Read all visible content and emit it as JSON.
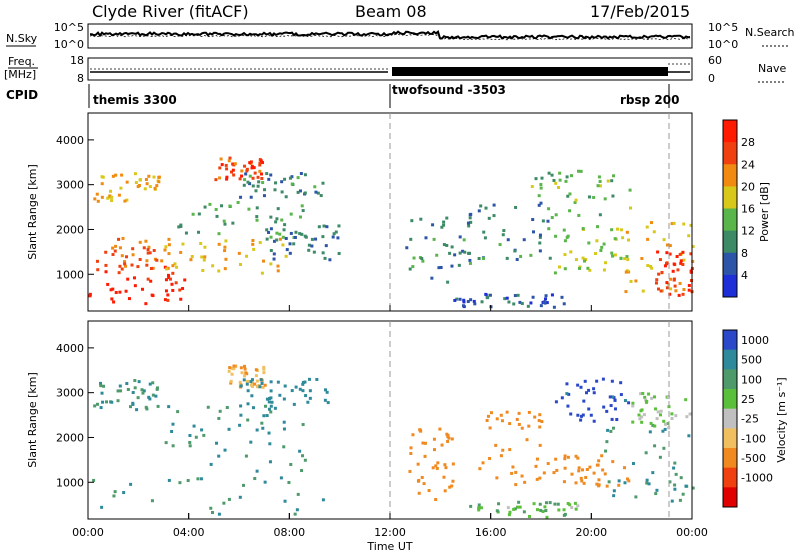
{
  "header": {
    "title": "Clyde River (fitACF)",
    "beam": "Beam 08",
    "date": "17/Feb/2015"
  },
  "param_panel": {
    "nsky_label": "N.Sky",
    "nsky_ticks": [
      "10^5",
      "10^0"
    ],
    "nsearch_label": "N.Search",
    "nsearch_ticks": [
      "10^5",
      "10^0"
    ],
    "freq_label": "Freq.",
    "freq_unit": "[MHz]",
    "freq_ticks": [
      "18",
      "8"
    ],
    "nave_label": "Nave",
    "nave_ticks": [
      "60",
      "0"
    ],
    "cpid_label": "CPID",
    "cpid_segments": [
      {
        "label": "themis 3300",
        "start_hour": 0
      },
      {
        "label": "twofsound -3503",
        "start_hour": 12.0
      },
      {
        "label": "rbsp 200",
        "start_hour": 22.9
      }
    ]
  },
  "x_axis": {
    "label": "Time UT",
    "ticks": [
      "00:00",
      "04:00",
      "08:00",
      "12:00",
      "16:00",
      "20:00",
      "00:00"
    ]
  },
  "chart_data": [
    {
      "type": "heatmap",
      "name": "power",
      "ylabel": "Slant Range [km]",
      "yticks": [
        "1000",
        "2000",
        "3000",
        "4000"
      ],
      "xrange_hours": [
        0,
        24
      ],
      "yrange_km": [
        180,
        4600
      ],
      "colorbar_label": "Power [dB]",
      "colorbar_ticks": [
        "4",
        "8",
        "12",
        "16",
        "20",
        "24",
        "28"
      ],
      "colorbar_range": [
        0,
        32
      ],
      "colors": [
        "#1e2fd8",
        "#2c55a8",
        "#3d8a66",
        "#5ab54a",
        "#d8c81a",
        "#f08a10",
        "#f04010",
        "#ff1a00"
      ],
      "regions": [
        {
          "hours": [
            0.0,
            3.8
          ],
          "km": [
            250,
            1150
          ],
          "value": 30
        },
        {
          "hours": [
            0.3,
            3.2
          ],
          "km": [
            1100,
            1800
          ],
          "value": 24
        },
        {
          "hours": [
            0.2,
            2.8
          ],
          "km": [
            2600,
            3300
          ],
          "value": 20
        },
        {
          "hours": [
            3.0,
            8.0
          ],
          "km": [
            1000,
            1800
          ],
          "value": 20
        },
        {
          "hours": [
            3.5,
            8.5
          ],
          "km": [
            1800,
            2600
          ],
          "value": 12
        },
        {
          "hours": [
            5.0,
            7.0
          ],
          "km": [
            3100,
            3600
          ],
          "value": 26
        },
        {
          "hours": [
            6.0,
            9.5
          ],
          "km": [
            2700,
            3300
          ],
          "value": 10
        },
        {
          "hours": [
            7.0,
            10.0
          ],
          "km": [
            1300,
            2100
          ],
          "value": 8
        },
        {
          "hours": [
            12.6,
            15.3
          ],
          "km": [
            800,
            2300
          ],
          "value": 10
        },
        {
          "hours": [
            14.5,
            19.0
          ],
          "km": [
            250,
            550
          ],
          "value": 6
        },
        {
          "hours": [
            15.0,
            18.5
          ],
          "km": [
            1300,
            2600
          ],
          "value": 9
        },
        {
          "hours": [
            17.5,
            21.5
          ],
          "km": [
            2300,
            3300
          ],
          "value": 14
        },
        {
          "hours": [
            18.5,
            21.5
          ],
          "km": [
            1000,
            2100
          ],
          "value": 16
        },
        {
          "hours": [
            21.0,
            24.0
          ],
          "km": [
            600,
            2200
          ],
          "value": 20
        },
        {
          "hours": [
            22.5,
            24.0
          ],
          "km": [
            500,
            1500
          ],
          "value": 28
        }
      ]
    },
    {
      "type": "heatmap",
      "name": "velocity",
      "ylabel": "Slant Range [km]",
      "yticks": [
        "1000",
        "2000",
        "3000",
        "4000"
      ],
      "xrange_hours": [
        0,
        24
      ],
      "yrange_km": [
        180,
        4600
      ],
      "colorbar_label": "Velocity [m s⁻¹]",
      "colorbar_ticks": [
        "1000",
        "500",
        "100",
        "25",
        "-25",
        "-100",
        "-500",
        "-1000"
      ],
      "colors": [
        "#2a48c8",
        "#2e8a9a",
        "#4e9a6a",
        "#5abf3a",
        "#c0c0c0",
        "#f0c060",
        "#f08a20",
        "#f04010",
        "#e00000"
      ],
      "regions": [
        {
          "hours": [
            0.0,
            9.5
          ],
          "km": [
            250,
            1800
          ],
          "value": 100
        },
        {
          "hours": [
            0.2,
            3.0
          ],
          "km": [
            2600,
            3300
          ],
          "value": 100
        },
        {
          "hours": [
            3.0,
            8.5
          ],
          "km": [
            1800,
            2700
          ],
          "value": 100
        },
        {
          "hours": [
            5.5,
            7.0
          ],
          "km": [
            3100,
            3600
          ],
          "value": -100
        },
        {
          "hours": [
            6.0,
            9.5
          ],
          "km": [
            2700,
            3300
          ],
          "value": 300
        },
        {
          "hours": [
            12.6,
            14.5
          ],
          "km": [
            600,
            2200
          ],
          "value": -300
        },
        {
          "hours": [
            15.0,
            19.5
          ],
          "km": [
            200,
            550
          ],
          "value": 25
        },
        {
          "hours": [
            15.5,
            18.0
          ],
          "km": [
            900,
            2600
          ],
          "value": -300
        },
        {
          "hours": [
            18.0,
            21.5
          ],
          "km": [
            900,
            1600
          ],
          "value": -300
        },
        {
          "hours": [
            18.5,
            21.5
          ],
          "km": [
            2300,
            3300
          ],
          "value": 700
        },
        {
          "hours": [
            20.5,
            24.0
          ],
          "km": [
            500,
            2300
          ],
          "value": 100
        },
        {
          "hours": [
            21.5,
            24.0
          ],
          "km": [
            2200,
            3000
          ],
          "value": 0
        }
      ]
    }
  ]
}
